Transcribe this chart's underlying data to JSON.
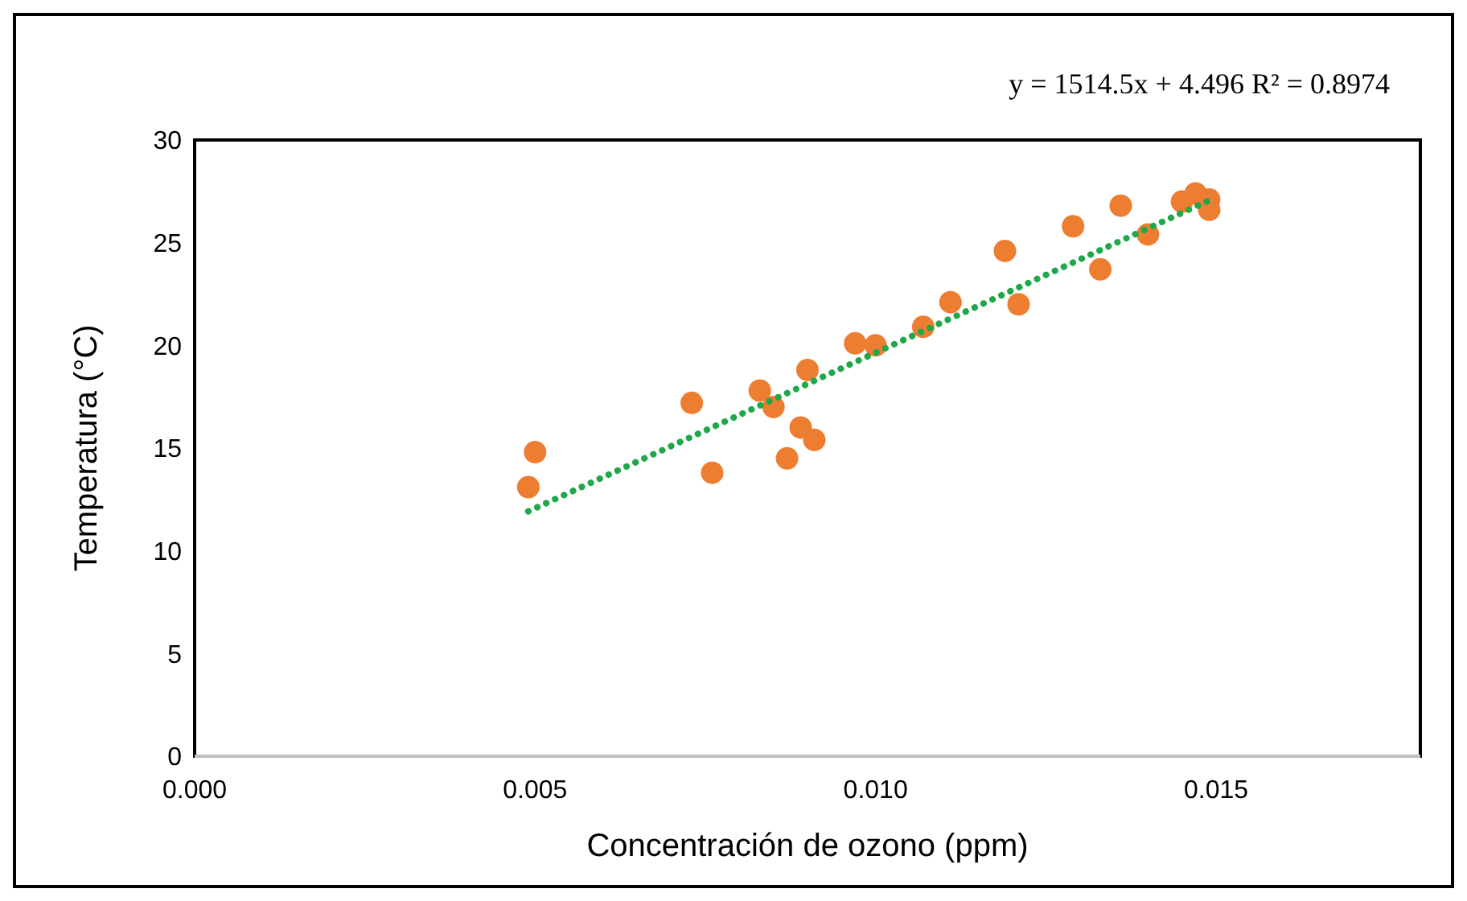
{
  "chart_data": {
    "type": "scatter",
    "xlabel": "Concentración de ozono (ppm)",
    "ylabel": "Temperatura (°C)",
    "annotations": [
      "y = 1514.5x + 4.496 R² = 0.8974"
    ],
    "xlim": [
      0,
      0.018
    ],
    "xticks": [
      {
        "value": 0,
        "label": "0.000"
      },
      {
        "value": 0.005,
        "label": "0.005"
      },
      {
        "value": 0.01,
        "label": "0.010"
      },
      {
        "value": 0.015,
        "label": "0.015"
      }
    ],
    "ylim": [
      0,
      30
    ],
    "yticks": [
      0,
      5,
      10,
      15,
      20,
      25,
      30
    ],
    "grid": false,
    "series": [
      {
        "color": "#ed7d31",
        "marker": "circle",
        "x": [
          0.0049,
          0.005,
          0.0073,
          0.0076,
          0.0083,
          0.0085,
          0.0087,
          0.0089,
          0.0091,
          0.009,
          0.0097,
          0.01,
          0.0107,
          0.0111,
          0.0121,
          0.0119,
          0.0129,
          0.0133,
          0.0136,
          0.014,
          0.0147,
          0.0145,
          0.0149,
          0.0149
        ],
        "values": [
          13.1,
          14.8,
          17.2,
          13.8,
          17.8,
          17.0,
          14.5,
          16.0,
          15.4,
          18.8,
          20.1,
          20.0,
          20.9,
          22.1,
          22.0,
          24.6,
          25.8,
          23.7,
          26.8,
          25.4,
          27.4,
          27.0,
          27.1,
          26.6
        ]
      },
      {
        "type": "line",
        "color": "#1fa84a",
        "line_style": "dotted",
        "marker": "none",
        "x": [
          0.0049,
          0.0149
        ],
        "values": [
          11.92,
          27.06
        ]
      }
    ]
  }
}
